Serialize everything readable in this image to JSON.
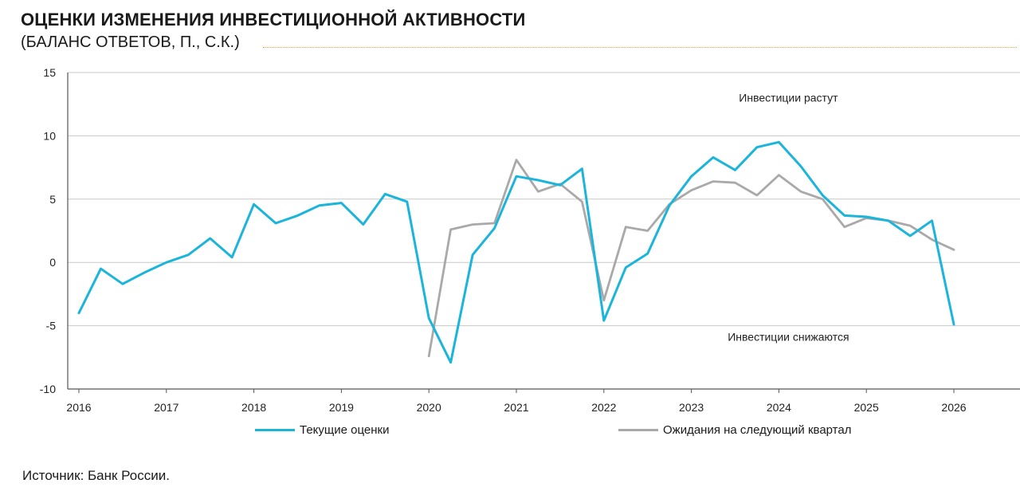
{
  "header": {
    "title": "ОЦЕНКИ ИЗМЕНЕНИЯ ИНВЕСТИЦИОННОЙ АКТИВНОСТИ",
    "subtitle": "(БАЛАНС ОТВЕТОВ, П., С.К.)"
  },
  "footer": {
    "source": "Источник: Банк России."
  },
  "colors": {
    "current": "#1bb5db",
    "expected": "#a9a9a9",
    "grid": "#c8c8c8",
    "axis": "#555555",
    "title_rule": "#e0a43c"
  },
  "chart_data": {
    "type": "line",
    "xlabel": "",
    "ylabel": "",
    "ylim": [
      -10,
      15
    ],
    "xlim": [
      2016,
      2026.75
    ],
    "yticks": [
      15,
      10,
      5,
      0,
      -5,
      -10
    ],
    "xticks": [
      "2016",
      "2017",
      "2018",
      "2019",
      "2020",
      "2021",
      "2022",
      "2023",
      "2024",
      "2025",
      "2026"
    ],
    "grid": true,
    "legend_placement": "bottom",
    "annotations": [
      {
        "text": "Инвестиции растут",
        "x": 2024,
        "y": 12.7
      },
      {
        "text": "Инвестиции снижаются",
        "x": 2024,
        "y": -6.2
      }
    ],
    "series": [
      {
        "name": "Текущие оценки",
        "color": "#1bb5db",
        "x": [
          2016,
          2016.25,
          2016.5,
          2016.75,
          2017,
          2017.25,
          2017.5,
          2017.75,
          2018,
          2018.25,
          2018.5,
          2018.75,
          2019,
          2019.25,
          2019.5,
          2019.75,
          2020,
          2020.25,
          2020.5,
          2020.75,
          2021,
          2021.25,
          2021.5,
          2021.75,
          2022,
          2022.25,
          2022.5,
          2022.75,
          2023,
          2023.25,
          2023.5,
          2023.75,
          2024,
          2024.25,
          2024.5,
          2024.75,
          2025,
          2025.25,
          2025.5,
          2025.75,
          2026
        ],
        "values": [
          -4.0,
          -0.5,
          -1.7,
          -0.8,
          0.0,
          0.6,
          1.9,
          0.4,
          4.6,
          3.1,
          3.7,
          4.5,
          4.7,
          3.0,
          5.4,
          4.8,
          -4.4,
          -7.9,
          0.6,
          2.7,
          6.8,
          6.5,
          6.1,
          7.4,
          -4.6,
          -0.4,
          0.7,
          4.5,
          6.8,
          8.3,
          7.3,
          9.1,
          9.5,
          7.6,
          5.3,
          3.7,
          3.6,
          3.3,
          2.1,
          3.3,
          -4.9
        ]
      },
      {
        "name": "Ожидания на следующий квартал",
        "color": "#a9a9a9",
        "x": [
          2020,
          2020.25,
          2020.5,
          2020.75,
          2021,
          2021.25,
          2021.5,
          2021.75,
          2022,
          2022.25,
          2022.5,
          2022.75,
          2023,
          2023.25,
          2023.5,
          2023.75,
          2024,
          2024.25,
          2024.5,
          2024.75,
          2025,
          2025.25,
          2025.5,
          2025.75,
          2026
        ],
        "values": [
          -7.4,
          2.6,
          3.0,
          3.1,
          8.1,
          5.6,
          6.2,
          4.8,
          -3.0,
          2.8,
          2.5,
          4.6,
          5.7,
          6.4,
          6.3,
          5.3,
          6.9,
          5.6,
          5.0,
          2.8,
          3.5,
          3.3,
          2.9,
          1.8,
          1.0
        ]
      }
    ]
  }
}
